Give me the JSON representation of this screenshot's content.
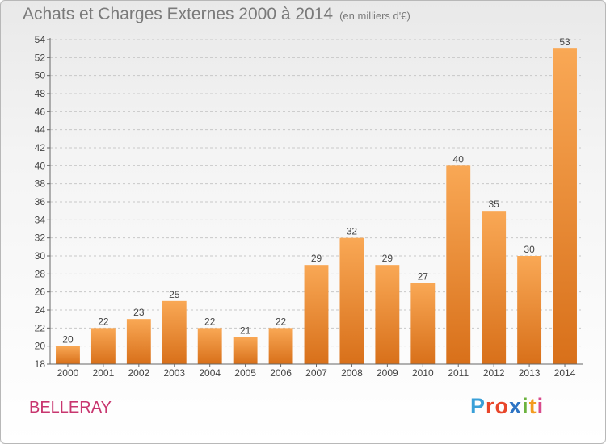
{
  "title": "Achats et Charges Externes 2000 à 2014",
  "subtitle": "(en milliers d'€)",
  "location": "BELLERAY",
  "brand": {
    "letters": [
      "P",
      "r",
      "o",
      "x",
      "i",
      "t",
      "i"
    ],
    "colors": [
      "#3aa0d8",
      "#e8462a",
      "#e8462a",
      "#2d74c4",
      "#6cb33f",
      "#f39c1f",
      "#d94b8c"
    ]
  },
  "colors": {
    "bar_top": "#f9a855",
    "bar_bottom": "#d8701a",
    "axis": "#666666",
    "grid": "#c8c8c8",
    "text": "#444444"
  },
  "chart_data": {
    "type": "bar",
    "categories": [
      "2000",
      "2001",
      "2002",
      "2003",
      "2004",
      "2005",
      "2006",
      "2007",
      "2008",
      "2009",
      "2010",
      "2011",
      "2012",
      "2013",
      "2014"
    ],
    "values": [
      20,
      22,
      23,
      25,
      22,
      21,
      22,
      29,
      32,
      29,
      27,
      40,
      35,
      30,
      53
    ],
    "ylim": [
      18,
      54
    ],
    "yticks": [
      18,
      20,
      22,
      24,
      26,
      28,
      30,
      32,
      34,
      36,
      38,
      40,
      42,
      44,
      46,
      48,
      50,
      52,
      54
    ],
    "grid": true,
    "data_labels": true
  }
}
